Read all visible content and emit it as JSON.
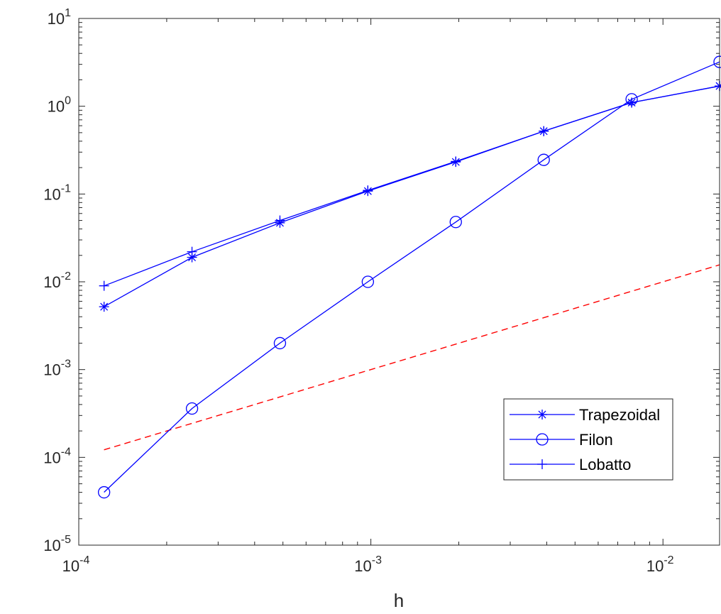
{
  "chart_data": {
    "type": "line",
    "xscale": "log",
    "yscale": "log",
    "xlim": [
      0.0001,
      0.015625
    ],
    "ylim": [
      1e-05,
      10
    ],
    "xlabel": "h",
    "ylabel": "",
    "title": "",
    "grid": false,
    "legend_position": "bottom-right",
    "x_ticks": [
      {
        "base": "10",
        "exp": "-4",
        "value": 0.0001
      },
      {
        "base": "10",
        "exp": "-3",
        "value": 0.001
      },
      {
        "base": "10",
        "exp": "-2",
        "value": 0.01
      }
    ],
    "y_ticks": [
      {
        "base": "10",
        "exp": "-5",
        "value": 1e-05
      },
      {
        "base": "10",
        "exp": "-4",
        "value": 0.0001
      },
      {
        "base": "10",
        "exp": "-3",
        "value": 0.001
      },
      {
        "base": "10",
        "exp": "-2",
        "value": 0.01
      },
      {
        "base": "10",
        "exp": "-1",
        "value": 0.1
      },
      {
        "base": "10",
        "exp": "0",
        "value": 1
      },
      {
        "base": "10",
        "exp": "1",
        "value": 10
      }
    ],
    "x": [
      0.00012207,
      0.00024414,
      0.00048828,
      0.00097656,
      0.00195313,
      0.00390625,
      0.0078125,
      0.015625
    ],
    "series": [
      {
        "name": "Trapezoidal",
        "marker": "asterisk",
        "color": "#0000ff",
        "line": "solid",
        "values": [
          0.0052,
          0.019,
          0.047,
          0.108,
          0.232,
          0.52,
          1.1,
          1.7
        ],
        "in_legend": true
      },
      {
        "name": "Filon",
        "marker": "circle",
        "color": "#0000ff",
        "line": "solid",
        "values": [
          4e-05,
          0.00036,
          0.002,
          0.01,
          0.048,
          0.245,
          1.2,
          3.2
        ],
        "in_legend": true
      },
      {
        "name": "Lobatto",
        "marker": "plus",
        "color": "#0000ff",
        "line": "solid",
        "values": [
          0.009,
          0.022,
          0.05,
          0.11,
          0.235,
          0.52,
          1.1,
          1.7
        ],
        "in_legend": true
      },
      {
        "name": "",
        "marker": "none",
        "color": "#ff0000",
        "line": "dashed",
        "values": [
          0.000122,
          0.000244,
          0.000488,
          0.000977,
          0.00195,
          0.0039,
          0.0078,
          0.0156
        ],
        "in_legend": false
      }
    ]
  }
}
